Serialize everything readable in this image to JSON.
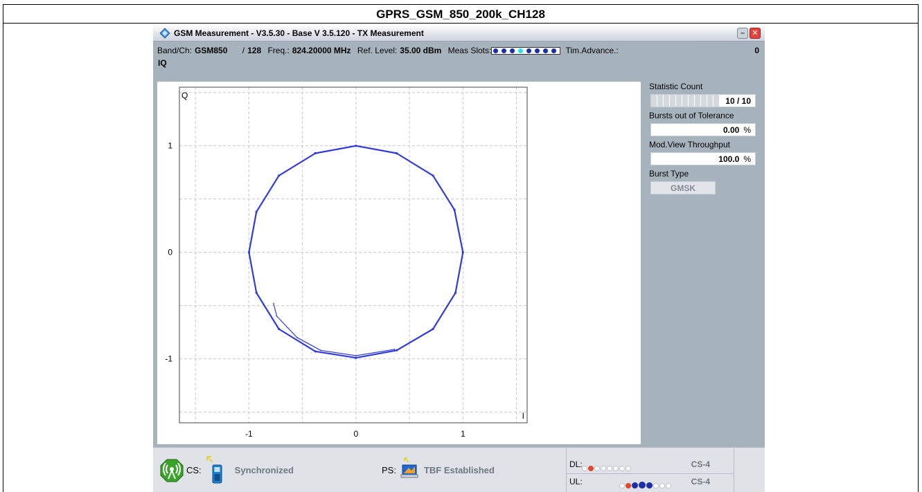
{
  "page": {
    "title": "GPRS_GSM_850_200k_CH128"
  },
  "window": {
    "title": "GSM Measurement  - V3.5.30 - Base V 3.5.120 - TX Measurement",
    "minimize_glyph": "–",
    "close_glyph": "✕"
  },
  "info": {
    "band_label": "Band/Ch:",
    "band_value": "GSM850",
    "separator": "/",
    "channel": "128",
    "freq_label": "Freq.:",
    "freq_value": "824.20000 MHz",
    "ref_label": "Ref. Level:",
    "ref_value": "35.00 dBm",
    "slots_label": "Meas Slots:",
    "slots_active_index": 3,
    "slots_count": 8,
    "tim_label": "Tim.Advance.:",
    "tim_value": "0",
    "view_label": "IQ"
  },
  "chart_data": {
    "type": "scatter",
    "title": "",
    "xlabel": "I",
    "ylabel": "Q",
    "xlim": [
      -1.65,
      1.6
    ],
    "ylim": [
      -1.6,
      1.55
    ],
    "grid": true,
    "x_ticks": [
      -1,
      0,
      1
    ],
    "y_ticks": [
      1,
      0,
      -1
    ],
    "x_tick_labels": [
      "-1",
      "0",
      "1"
    ],
    "y_tick_labels": [
      "1",
      "0",
      "-1"
    ],
    "series": [
      {
        "points": [
          [
            -0.38,
            0.93
          ],
          [
            0.0,
            1.0
          ],
          [
            0.38,
            0.93
          ],
          [
            0.72,
            0.72
          ],
          [
            0.92,
            0.4
          ],
          [
            1.0,
            0.0
          ],
          [
            0.93,
            -0.38
          ],
          [
            0.72,
            -0.72
          ],
          [
            0.38,
            -0.92
          ],
          [
            0.0,
            -0.99
          ],
          [
            -0.38,
            -0.93
          ],
          [
            -0.72,
            -0.72
          ],
          [
            -0.93,
            -0.38
          ],
          [
            -1.0,
            0.0
          ],
          [
            -0.93,
            0.38
          ],
          [
            -0.72,
            0.72
          ],
          [
            -0.38,
            0.93
          ]
        ],
        "color": "#2f3bd9"
      },
      {
        "points": [
          [
            -0.77,
            -0.48
          ],
          [
            -0.74,
            -0.6
          ],
          [
            -0.55,
            -0.8
          ],
          [
            -0.33,
            -0.92
          ],
          [
            0.0,
            -0.97
          ],
          [
            0.36,
            -0.91
          ]
        ],
        "color": "#2f3bd9"
      }
    ]
  },
  "side": {
    "stat_label": "Statistic Count",
    "stat_value": "10 / 10",
    "stat_fraction": 1.0,
    "bursts_label": "Bursts out of Tolerance",
    "bursts_value": "0.00",
    "bursts_unit": "%",
    "mod_label": "Mod.View Throughput",
    "mod_value": "100.0",
    "mod_unit": "%",
    "burst_type_label": "Burst Type",
    "burst_type_value": "GMSK"
  },
  "status": {
    "cs_label": "CS:",
    "cs_state": "Synchronized",
    "ps_label": "PS:",
    "ps_state": "TBF Established",
    "dl_label": "DL:",
    "dl_cs": "CS-4",
    "ul_label": "UL:",
    "ul_cs": "CS-4"
  },
  "colors": {
    "trace": "#2f3bd9",
    "window_bg": "#a6b3bd",
    "slot_active": "#27e3f0",
    "slot": "#1a2ea8"
  },
  "icons": {
    "app": "rs-diamond-icon",
    "antenna": "antenna-icon",
    "phone": "phone-icon",
    "laptop": "laptop-icon"
  }
}
